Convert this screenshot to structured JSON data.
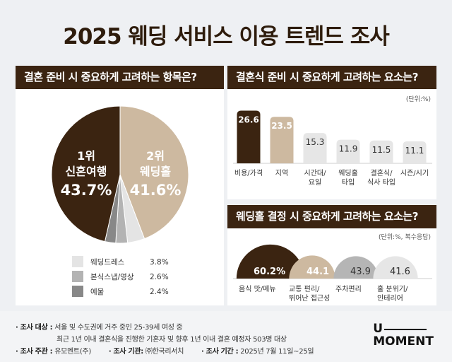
{
  "title": "2025 웨딩 서비스 이용 트렌드 조사",
  "colors": {
    "dark": "#3b2411",
    "beige": "#cdb9a0",
    "light": "#e6e6e6",
    "mid": "#b3b3b3",
    "gray": "#8a8a8a",
    "silver": "#b5b5b5"
  },
  "chart_data": [
    {
      "type": "pie",
      "title": "결혼 준비 시 중요하게 고려하는 항목은?",
      "slices": [
        {
          "name": "웨딩홀",
          "rank_label": "2위",
          "value": 41.6,
          "label": "41.6%",
          "color": "#cdb9a0"
        },
        {
          "name": "웨딩드레스",
          "value": 3.8,
          "label": "3.8%",
          "color": "#e4e4e4"
        },
        {
          "name": "본식스냅/영상",
          "value": 2.6,
          "label": "2.6%",
          "color": "#b3b3b3"
        },
        {
          "name": "예물",
          "value": 2.4,
          "label": "2.4%",
          "color": "#888888"
        },
        {
          "name": "신혼여행",
          "rank_label": "1위",
          "value": 43.7,
          "label": "43.7%",
          "color": "#3b2411"
        }
      ]
    },
    {
      "type": "bar",
      "title": "결혼식 준비 시 중요하게 고려하는 요소는?",
      "unit": "(단위:%)",
      "categories": [
        "비용/가격",
        "지역",
        "시간대/\n요일",
        "웨딩홀\n타입",
        "결혼식/\n식사 타입",
        "시즌/시기"
      ],
      "values": [
        26.6,
        23.5,
        15.3,
        11.9,
        11.5,
        11.1
      ],
      "colors": [
        "#3b2411",
        "#cdb9a0",
        "#e6e6e6",
        "#e6e6e6",
        "#e6e6e6",
        "#e6e6e6"
      ]
    },
    {
      "type": "semicircle",
      "title": "웨딩홀 결정 시 중요하게 고려하는 요소는?",
      "unit": "(단위:%, 복수응답)",
      "categories": [
        "음식 맛/메뉴",
        "교통 편리/\n뛰어난 접근성",
        "주차편리",
        "홀 분위기/\n인테리어"
      ],
      "values": [
        60.2,
        44.1,
        43.9,
        41.6
      ],
      "labels": [
        "60.2%",
        "44.1",
        "43.9",
        "41.6"
      ],
      "colors": [
        "#3b2411",
        "#cdb9a0",
        "#b5b5b5",
        "#e6e6e6"
      ]
    }
  ],
  "footer": {
    "target_label": "· 조사 대상 :",
    "target_1": "서울 및 수도권에 거주 중인 25-39세 여성 중",
    "target_2": "최근 1년 이내 결혼식을 진행한 기혼자 및 향후 1년 이내 결혼 예정자 503명 대상",
    "host_label": "· 조사 주관 :",
    "host": "유모멘트(주)",
    "agency_label": "· 조사 기관:",
    "agency": "㈜한국리서치",
    "period_label": "· 조사 기간 :",
    "period": "2025년 7월 11일~25일"
  },
  "logo": "U MOMENT"
}
